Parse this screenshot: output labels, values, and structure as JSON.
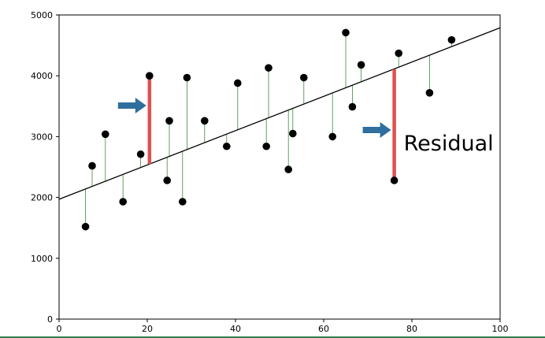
{
  "chart_data": {
    "type": "scatter",
    "title": "",
    "xlabel": "",
    "ylabel": "",
    "xlim": [
      0,
      100
    ],
    "ylim": [
      0,
      5000
    ],
    "x_ticks": [
      "0",
      "20",
      "40",
      "60",
      "80",
      "100"
    ],
    "y_ticks": [
      "0",
      "1000",
      "2000",
      "3000",
      "4000",
      "5000"
    ],
    "grid": false,
    "points": [
      {
        "x": 6,
        "y": 1520
      },
      {
        "x": 7.5,
        "y": 2520
      },
      {
        "x": 10.5,
        "y": 3040
      },
      {
        "x": 14.5,
        "y": 1930
      },
      {
        "x": 18.5,
        "y": 2710
      },
      {
        "x": 20.5,
        "y": 4000
      },
      {
        "x": 24.5,
        "y": 2280
      },
      {
        "x": 25,
        "y": 3260
      },
      {
        "x": 28,
        "y": 1930
      },
      {
        "x": 29,
        "y": 3970
      },
      {
        "x": 33,
        "y": 3260
      },
      {
        "x": 38,
        "y": 2840
      },
      {
        "x": 40.5,
        "y": 3880
      },
      {
        "x": 47,
        "y": 2840
      },
      {
        "x": 47.5,
        "y": 4130
      },
      {
        "x": 52,
        "y": 2460
      },
      {
        "x": 53,
        "y": 3050
      },
      {
        "x": 55.5,
        "y": 3970
      },
      {
        "x": 62,
        "y": 3000
      },
      {
        "x": 65,
        "y": 4710
      },
      {
        "x": 66.5,
        "y": 3490
      },
      {
        "x": 68.5,
        "y": 4180
      },
      {
        "x": 76,
        "y": 2280
      },
      {
        "x": 77,
        "y": 4370
      },
      {
        "x": 84,
        "y": 3720
      },
      {
        "x": 89,
        "y": 4590
      }
    ],
    "regression_line": {
      "x": [
        0,
        100
      ],
      "y": [
        1970,
        4790
      ]
    },
    "highlighted_residuals": [
      {
        "x": 20.5,
        "y_from": 2548,
        "y_to": 3950
      },
      {
        "x": 76,
        "y_from": 2300,
        "y_to": 4108
      }
    ],
    "annotation": {
      "text": "Residual",
      "near_x": 76
    },
    "colors": {
      "points": "#000000",
      "residual_lines": "#3a8a3a",
      "highlight": "#e05050",
      "arrow": "#2f6f9f",
      "line": "#000000"
    }
  }
}
